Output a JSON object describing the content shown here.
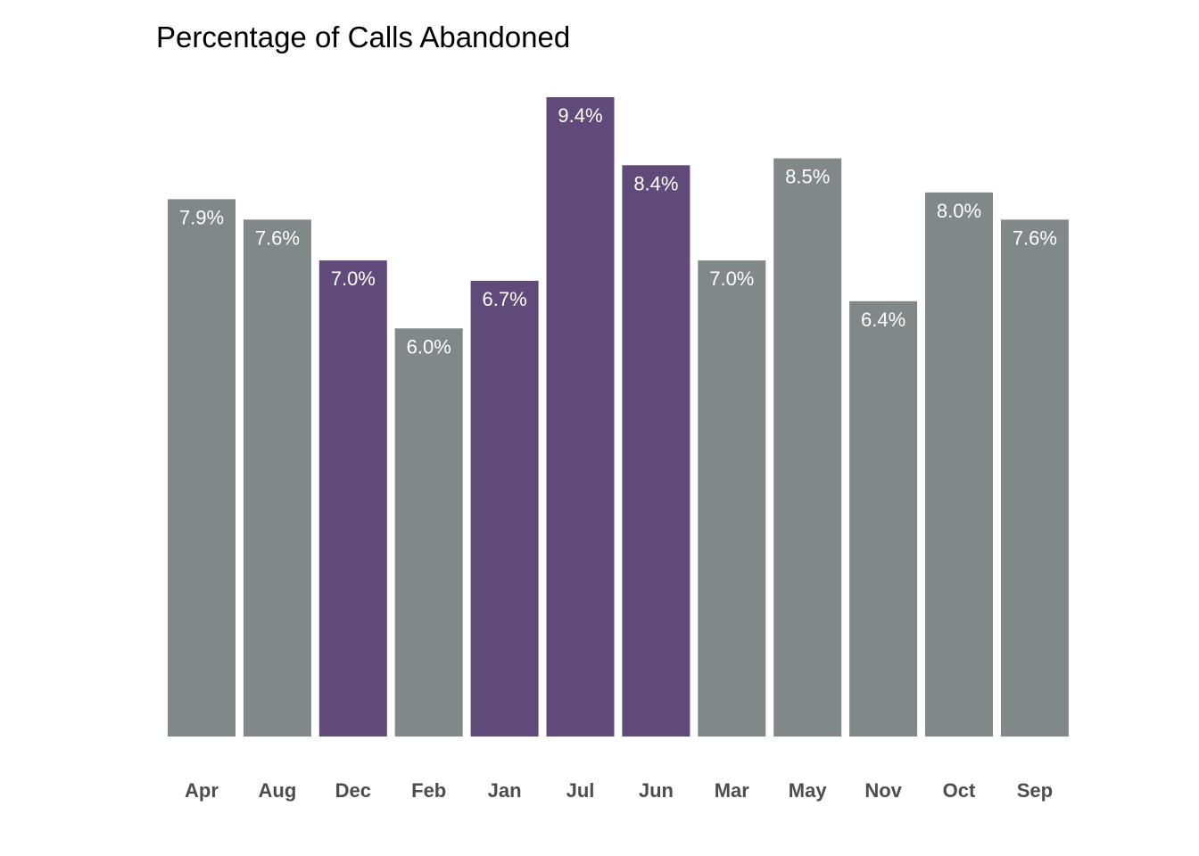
{
  "chart_data": {
    "type": "bar",
    "title": "Percentage of Calls Abandoned",
    "xlabel": "",
    "ylabel": "",
    "categories": [
      "Apr",
      "Aug",
      "Dec",
      "Feb",
      "Jan",
      "Jul",
      "Jun",
      "Mar",
      "May",
      "Nov",
      "Oct",
      "Sep"
    ],
    "values": [
      7.9,
      7.6,
      7.0,
      6.0,
      6.7,
      9.4,
      8.4,
      7.0,
      8.5,
      6.4,
      8.0,
      7.6
    ],
    "data_labels": [
      "7.9%",
      "7.6%",
      "7.0%",
      "6.0%",
      "6.7%",
      "9.4%",
      "8.4%",
      "7.0%",
      "8.5%",
      "6.4%",
      "8.0%",
      "7.6%"
    ],
    "highlighted": [
      "Dec",
      "Jan",
      "Jul",
      "Jun"
    ],
    "ylim": [
      0,
      9.4
    ],
    "grid": false,
    "legend": "none",
    "colors": {
      "default": "#818888",
      "highlight": "#5f4a7a",
      "label": "#ffffff",
      "tick": "#4d4d4d",
      "title": "#000000"
    }
  }
}
